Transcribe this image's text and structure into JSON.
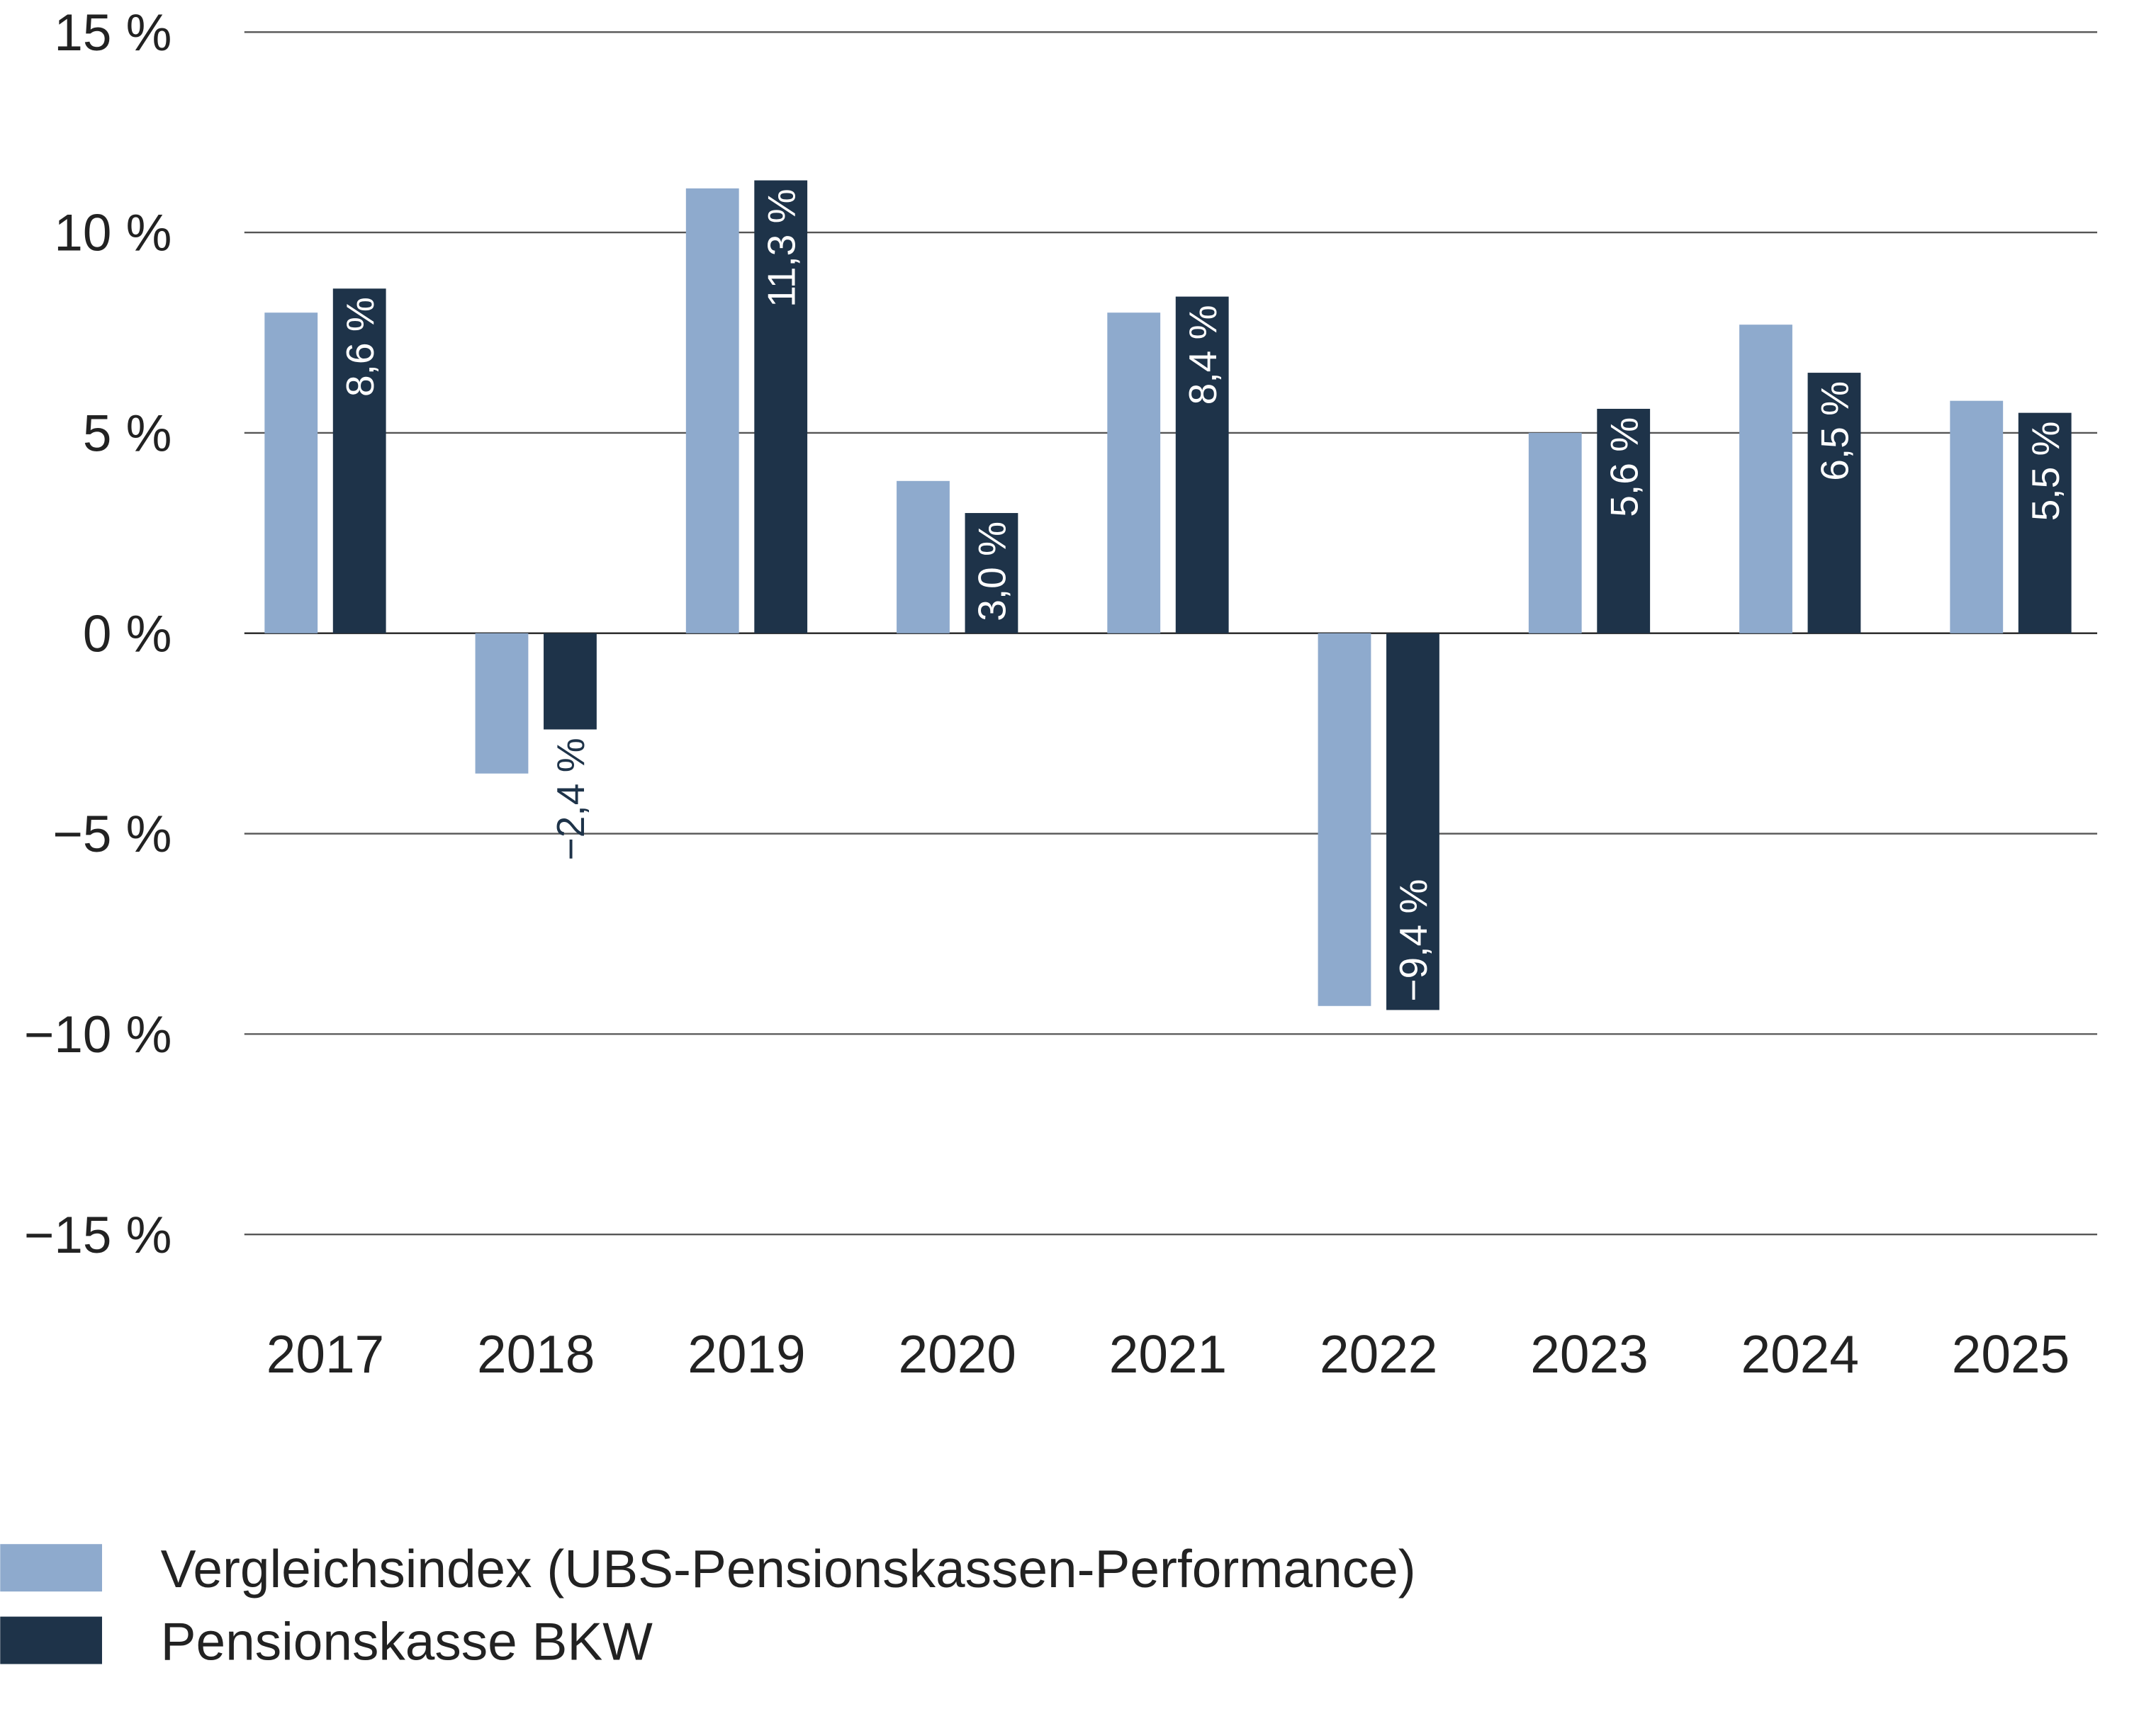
{
  "chart_data": {
    "type": "bar",
    "categories": [
      "2017",
      "2018",
      "2019",
      "2020",
      "2021",
      "2022",
      "2023",
      "2024",
      "2025"
    ],
    "series": [
      {
        "name": "Vergleichsindex (UBS-Pensionskassen-Performance)",
        "color": "#8eaacd",
        "values": [
          8.0,
          -3.5,
          11.1,
          3.8,
          8.0,
          -9.3,
          5.0,
          7.7,
          5.8
        ]
      },
      {
        "name": "Pensionskasse BKW",
        "color": "#1e3349",
        "values": [
          8.6,
          -2.4,
          11.3,
          3.0,
          8.4,
          -9.4,
          5.6,
          6.5,
          5.5
        ],
        "value_labels": [
          "8,6 %",
          "−2,4 %",
          "11,3 %",
          "3,0 %",
          "8,4 %",
          "−9,4 %",
          "5,6 %",
          "6,5 %",
          "5,5 %"
        ]
      }
    ],
    "ylim": [
      -15,
      15
    ],
    "yticks": [
      {
        "value": -15,
        "label": "−15 %"
      },
      {
        "value": -10,
        "label": "−10 %"
      },
      {
        "value": -5,
        "label": "−5 %"
      },
      {
        "value": 0,
        "label": "0 %"
      },
      {
        "value": 5,
        "label": "5 %"
      },
      {
        "value": 10,
        "label": "10 %"
      },
      {
        "value": 15,
        "label": "15 %"
      }
    ],
    "grid": true
  }
}
